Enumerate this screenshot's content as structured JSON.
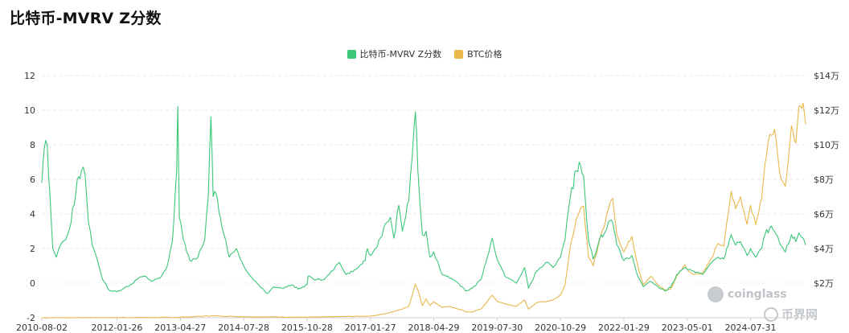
{
  "page": {
    "title": "比特币-MVRV Z分数"
  },
  "watermarks": {
    "coinglass": "coinglass",
    "bijie": "币界网"
  },
  "colors": {
    "mvrv": "#3cc77a",
    "price": "#e8b84a",
    "grid": "#ebebeb",
    "axis_text": "#333333"
  },
  "chart_data": {
    "type": "line",
    "title": "比特币-MVRV Z分数",
    "legend_position": "top-center",
    "grid": true,
    "x_ticks": [
      "2010-08-02",
      "2012-01-26",
      "2013-04-27",
      "2014-07-28",
      "2015-10-28",
      "2017-01-27",
      "2018-04-29",
      "2019-07-30",
      "2020-10-29",
      "2022-01-29",
      "2023-05-01",
      "2024-07-31"
    ],
    "y_left": {
      "ticks": [
        "12",
        "10",
        "8",
        "6",
        "4",
        "2",
        "0",
        "-2"
      ],
      "range": [
        -2,
        12
      ]
    },
    "y_right": {
      "ticks": [
        "$14万",
        "$12万",
        "$10万",
        "$8万",
        "$6万",
        "$4万",
        "$2万"
      ],
      "range_usd_wan": [
        0,
        14
      ]
    },
    "x_range": [
      "2010-08-02",
      "2025-09-01"
    ],
    "series": [
      {
        "name": "比特币-MVRV Z分数",
        "axis": "left",
        "points": [
          [
            "2010-08-02",
            5.8
          ],
          [
            "2010-08-20",
            7.8
          ],
          [
            "2010-09-10",
            8.0
          ],
          [
            "2010-10-01",
            5.0
          ],
          [
            "2010-10-20",
            2.0
          ],
          [
            "2010-11-15",
            1.5
          ],
          [
            "2010-12-15",
            2.2
          ],
          [
            "2011-01-20",
            2.5
          ],
          [
            "2011-03-01",
            3.5
          ],
          [
            "2011-04-15",
            6.0
          ],
          [
            "2011-05-15",
            6.5
          ],
          [
            "2011-06-10",
            6.3
          ],
          [
            "2011-07-05",
            3.5
          ],
          [
            "2011-08-01",
            2.2
          ],
          [
            "2011-09-01",
            1.5
          ],
          [
            "2011-10-15",
            0.2
          ],
          [
            "2011-12-01",
            -0.4
          ],
          [
            "2012-01-26",
            -0.5
          ],
          [
            "2012-03-15",
            -0.3
          ],
          [
            "2012-05-01",
            -0.1
          ],
          [
            "2012-07-01",
            0.3
          ],
          [
            "2012-08-20",
            0.4
          ],
          [
            "2012-10-01",
            0.1
          ],
          [
            "2012-12-01",
            0.3
          ],
          [
            "2013-01-20",
            0.9
          ],
          [
            "2013-03-01",
            2.4
          ],
          [
            "2013-04-01",
            6.5
          ],
          [
            "2013-04-09",
            10.2
          ],
          [
            "2013-04-20",
            3.8
          ],
          [
            "2013-05-20",
            2.5
          ],
          [
            "2013-07-05",
            1.3
          ],
          [
            "2013-09-01",
            1.5
          ],
          [
            "2013-10-20",
            2.5
          ],
          [
            "2013-11-15",
            5.0
          ],
          [
            "2013-12-04",
            9.6
          ],
          [
            "2013-12-20",
            5.0
          ],
          [
            "2014-01-10",
            5.2
          ],
          [
            "2014-02-10",
            3.8
          ],
          [
            "2014-03-20",
            2.5
          ],
          [
            "2014-04-15",
            1.5
          ],
          [
            "2014-06-05",
            2.0
          ],
          [
            "2014-07-28",
            1.0
          ],
          [
            "2014-09-15",
            0.4
          ],
          [
            "2014-11-01",
            0.0
          ],
          [
            "2015-01-14",
            -0.6
          ],
          [
            "2015-03-01",
            -0.2
          ],
          [
            "2015-05-01",
            -0.3
          ],
          [
            "2015-07-10",
            -0.1
          ],
          [
            "2015-08-25",
            -0.35
          ],
          [
            "2015-10-28",
            -0.1
          ],
          [
            "2015-11-05",
            0.4
          ],
          [
            "2016-01-01",
            0.2
          ],
          [
            "2016-03-01",
            0.2
          ],
          [
            "2016-06-17",
            1.2
          ],
          [
            "2016-08-05",
            0.5
          ],
          [
            "2016-10-15",
            0.8
          ],
          [
            "2016-12-20",
            1.3
          ],
          [
            "2017-01-05",
            2.0
          ],
          [
            "2017-01-27",
            1.6
          ],
          [
            "2017-03-05",
            2.0
          ],
          [
            "2017-05-25",
            3.5
          ],
          [
            "2017-06-20",
            3.8
          ],
          [
            "2017-07-15",
            2.6
          ],
          [
            "2017-08-20",
            4.5
          ],
          [
            "2017-09-15",
            3.0
          ],
          [
            "2017-11-01",
            4.8
          ],
          [
            "2017-12-17",
            9.9
          ],
          [
            "2018-01-05",
            6.5
          ],
          [
            "2018-02-06",
            2.8
          ],
          [
            "2018-03-05",
            3.0
          ],
          [
            "2018-04-01",
            1.5
          ],
          [
            "2018-04-29",
            1.8
          ],
          [
            "2018-06-29",
            0.5
          ],
          [
            "2018-08-10",
            0.4
          ],
          [
            "2018-11-20",
            -0.2
          ],
          [
            "2018-12-15",
            -0.45
          ],
          [
            "2019-02-01",
            -0.3
          ],
          [
            "2019-04-05",
            0.2
          ],
          [
            "2019-06-26",
            2.6
          ],
          [
            "2019-07-30",
            1.4
          ],
          [
            "2019-09-25",
            0.4
          ],
          [
            "2019-12-17",
            0.0
          ],
          [
            "2020-02-13",
            0.9
          ],
          [
            "2020-03-12",
            -0.3
          ],
          [
            "2020-05-10",
            0.7
          ],
          [
            "2020-07-25",
            1.2
          ],
          [
            "2020-09-05",
            0.9
          ],
          [
            "2020-10-29",
            1.5
          ],
          [
            "2020-12-01",
            2.5
          ],
          [
            "2021-01-08",
            5.0
          ],
          [
            "2021-02-20",
            6.5
          ],
          [
            "2021-03-13",
            7.0
          ],
          [
            "2021-04-14",
            6.2
          ],
          [
            "2021-05-19",
            2.5
          ],
          [
            "2021-06-22",
            1.4
          ],
          [
            "2021-08-20",
            2.8
          ],
          [
            "2021-09-07",
            2.8
          ],
          [
            "2021-10-20",
            3.6
          ],
          [
            "2021-11-10",
            3.5
          ],
          [
            "2021-12-10",
            2.2
          ],
          [
            "2022-01-29",
            1.3
          ],
          [
            "2022-03-28",
            1.6
          ],
          [
            "2022-05-10",
            0.4
          ],
          [
            "2022-06-18",
            -0.2
          ],
          [
            "2022-08-13",
            0.1
          ],
          [
            "2022-10-01",
            -0.2
          ],
          [
            "2022-11-21",
            -0.45
          ],
          [
            "2023-01-01",
            -0.25
          ],
          [
            "2023-02-15",
            0.5
          ],
          [
            "2023-04-14",
            0.9
          ],
          [
            "2023-05-01",
            0.8
          ],
          [
            "2023-06-15",
            0.7
          ],
          [
            "2023-08-20",
            0.5
          ],
          [
            "2023-10-25",
            1.2
          ],
          [
            "2023-12-10",
            1.5
          ],
          [
            "2024-01-20",
            1.4
          ],
          [
            "2024-03-13",
            2.8
          ],
          [
            "2024-04-15",
            2.2
          ],
          [
            "2024-05-20",
            2.4
          ],
          [
            "2024-07-05",
            1.6
          ],
          [
            "2024-07-31",
            2.0
          ],
          [
            "2024-09-06",
            1.5
          ],
          [
            "2024-10-20",
            2.0
          ],
          [
            "2024-11-12",
            2.8
          ],
          [
            "2024-12-17",
            3.2
          ],
          [
            "2025-01-20",
            3.0
          ],
          [
            "2025-02-26",
            2.3
          ],
          [
            "2025-04-08",
            1.8
          ],
          [
            "2025-05-22",
            2.8
          ],
          [
            "2025-06-22",
            2.4
          ],
          [
            "2025-07-14",
            2.9
          ],
          [
            "2025-08-14",
            2.6
          ],
          [
            "2025-09-01",
            2.2
          ]
        ]
      },
      {
        "name": "BTC价格",
        "axis": "right",
        "unit": "万美元",
        "points": [
          [
            "2010-08-02",
            0.0
          ],
          [
            "2013-04-09",
            0.02
          ],
          [
            "2013-12-04",
            0.11
          ],
          [
            "2014-07-28",
            0.06
          ],
          [
            "2015-10-28",
            0.03
          ],
          [
            "2016-12-20",
            0.09
          ],
          [
            "2017-01-27",
            0.09
          ],
          [
            "2017-05-25",
            0.25
          ],
          [
            "2017-09-01",
            0.47
          ],
          [
            "2017-11-01",
            0.67
          ],
          [
            "2017-12-17",
            1.95
          ],
          [
            "2018-01-05",
            1.6
          ],
          [
            "2018-02-06",
            0.7
          ],
          [
            "2018-03-05",
            1.1
          ],
          [
            "2018-04-01",
            0.7
          ],
          [
            "2018-04-29",
            0.92
          ],
          [
            "2018-06-29",
            0.6
          ],
          [
            "2018-08-10",
            0.65
          ],
          [
            "2018-11-20",
            0.45
          ],
          [
            "2018-12-15",
            0.33
          ],
          [
            "2019-02-01",
            0.34
          ],
          [
            "2019-04-05",
            0.5
          ],
          [
            "2019-06-26",
            1.3
          ],
          [
            "2019-07-30",
            0.95
          ],
          [
            "2019-09-25",
            0.8
          ],
          [
            "2019-12-17",
            0.66
          ],
          [
            "2020-02-13",
            1.03
          ],
          [
            "2020-03-12",
            0.5
          ],
          [
            "2020-05-10",
            0.88
          ],
          [
            "2020-07-25",
            0.95
          ],
          [
            "2020-09-05",
            1.03
          ],
          [
            "2020-10-29",
            1.3
          ],
          [
            "2020-12-01",
            1.9
          ],
          [
            "2021-01-08",
            4.1
          ],
          [
            "2021-02-20",
            5.7
          ],
          [
            "2021-03-13",
            6.1
          ],
          [
            "2021-04-14",
            6.45
          ],
          [
            "2021-05-19",
            3.5
          ],
          [
            "2021-06-22",
            3.0
          ],
          [
            "2021-08-20",
            4.9
          ],
          [
            "2021-09-07",
            5.2
          ],
          [
            "2021-10-20",
            6.6
          ],
          [
            "2021-11-10",
            6.9
          ],
          [
            "2021-12-10",
            4.8
          ],
          [
            "2022-01-29",
            3.8
          ],
          [
            "2022-03-28",
            4.7
          ],
          [
            "2022-05-10",
            3.0
          ],
          [
            "2022-06-18",
            1.9
          ],
          [
            "2022-08-13",
            2.4
          ],
          [
            "2022-10-01",
            1.9
          ],
          [
            "2022-11-21",
            1.6
          ],
          [
            "2023-01-01",
            1.65
          ],
          [
            "2023-02-15",
            2.4
          ],
          [
            "2023-04-14",
            3.05
          ],
          [
            "2023-05-01",
            2.8
          ],
          [
            "2023-06-15",
            2.5
          ],
          [
            "2023-08-20",
            2.6
          ],
          [
            "2023-10-25",
            3.45
          ],
          [
            "2023-12-10",
            4.3
          ],
          [
            "2024-01-20",
            4.15
          ],
          [
            "2024-03-13",
            7.3
          ],
          [
            "2024-04-15",
            6.3
          ],
          [
            "2024-05-20",
            7.0
          ],
          [
            "2024-07-05",
            5.4
          ],
          [
            "2024-07-31",
            6.5
          ],
          [
            "2024-09-06",
            5.4
          ],
          [
            "2024-10-20",
            6.9
          ],
          [
            "2024-11-12",
            8.9
          ],
          [
            "2024-12-17",
            10.6
          ],
          [
            "2025-01-20",
            10.9
          ],
          [
            "2025-02-26",
            8.4
          ],
          [
            "2025-04-08",
            7.6
          ],
          [
            "2025-05-22",
            11.1
          ],
          [
            "2025-06-22",
            10.1
          ],
          [
            "2025-07-14",
            12.2
          ],
          [
            "2025-08-14",
            12.4
          ],
          [
            "2025-09-01",
            11.2
          ]
        ]
      }
    ]
  }
}
